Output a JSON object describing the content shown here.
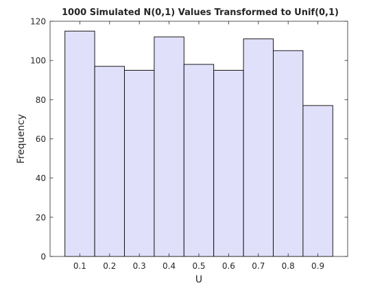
{
  "chart_data": {
    "type": "bar",
    "title": "1000 Simulated N(0,1) Values Transformed to Unif(0,1)",
    "xlabel": "U",
    "ylabel": "Frequency",
    "bins": [
      {
        "start": 0.05,
        "end": 0.15,
        "value": 115
      },
      {
        "start": 0.15,
        "end": 0.25,
        "value": 97
      },
      {
        "start": 0.25,
        "end": 0.35,
        "value": 95
      },
      {
        "start": 0.35,
        "end": 0.45,
        "value": 112
      },
      {
        "start": 0.45,
        "end": 0.55,
        "value": 98
      },
      {
        "start": 0.55,
        "end": 0.65,
        "value": 95
      },
      {
        "start": 0.65,
        "end": 0.75,
        "value": 111
      },
      {
        "start": 0.75,
        "end": 0.85,
        "value": 105
      },
      {
        "start": 0.85,
        "end": 0.95,
        "value": 77
      }
    ],
    "xlim": [
      0,
      1
    ],
    "ylim": [
      0,
      120
    ],
    "x_ticks": [
      0.1,
      0.2,
      0.3,
      0.4,
      0.5,
      0.6,
      0.7,
      0.8,
      0.9
    ],
    "x_tick_labels": [
      "0.1",
      "0.2",
      "0.3",
      "0.4",
      "0.5",
      "0.6",
      "0.7",
      "0.8",
      "0.9"
    ],
    "y_ticks": [
      0,
      20,
      40,
      60,
      80,
      100,
      120
    ],
    "y_tick_labels": [
      "0",
      "20",
      "40",
      "60",
      "80",
      "100",
      "120"
    ],
    "grid": false,
    "bar_fill_color": "#e0e0fb",
    "bar_edge_color": "#000000",
    "axis_color": "#262626"
  }
}
